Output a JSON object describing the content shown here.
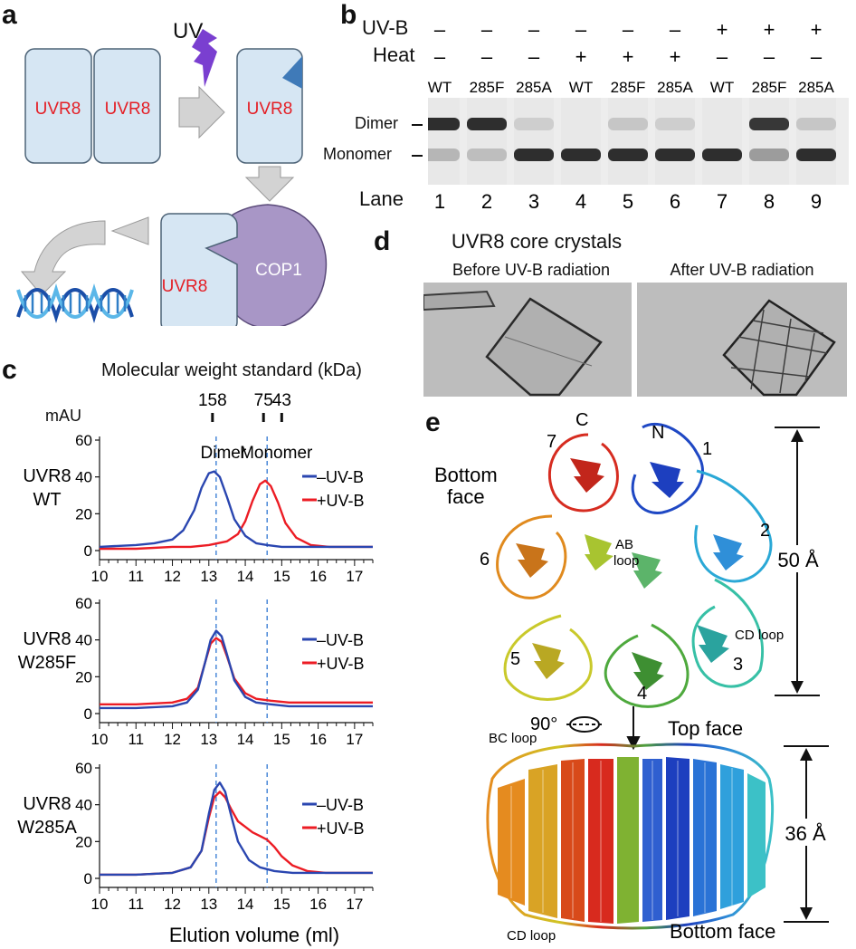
{
  "panel_labels": {
    "a": "a",
    "b": "b",
    "c": "c",
    "d": "d",
    "e": "e"
  },
  "panel_a": {
    "uv": "UV",
    "uvr8": "UVR8",
    "cop1": "COP1",
    "colors": {
      "box_fill": "#d6e6f3",
      "box_stroke": "#4d6377",
      "cop1_fill": "#a896c6",
      "text_red": "#e41e25",
      "arrow_fill": "#d3d3d3",
      "bolt": "#7a3fd0",
      "wedge": "#3f7ab8"
    }
  },
  "panel_b": {
    "uvb_label": "UV-B",
    "heat_label": "Heat",
    "uvb_signs": [
      "–",
      "–",
      "–",
      "–",
      "–",
      "–",
      "+",
      "+",
      "+"
    ],
    "heat_signs": [
      "–",
      "–",
      "–",
      "+",
      "+",
      "+",
      "–",
      "–",
      "–"
    ],
    "genotypes": [
      "WT",
      "285F",
      "285A",
      "WT",
      "285F",
      "285A",
      "WT",
      "285F",
      "285A"
    ],
    "dimer_label": "Dimer",
    "monomer_label": "Monomer",
    "lane_label": "Lane",
    "lanes": [
      "1",
      "2",
      "3",
      "4",
      "5",
      "6",
      "7",
      "8",
      "9"
    ],
    "dimer_band": [
      1.0,
      1.0,
      0.05,
      0.0,
      0.1,
      0.05,
      0.0,
      0.95,
      0.1
    ],
    "monomer_band": [
      0.2,
      0.15,
      1.0,
      1.0,
      1.0,
      1.0,
      1.0,
      0.35,
      1.0
    ]
  },
  "panel_c": {
    "mw_title": "Molecular weight standard (kDa)",
    "mau": "mAU",
    "mw_markers": [
      {
        "label": "158",
        "x": 13.1
      },
      {
        "label": "75",
        "x": 14.5
      },
      {
        "label": "43",
        "x": 15.0
      }
    ],
    "dimer_label": "Dimer",
    "monomer_label": "Monomer",
    "xlabel": "Elution volume (ml)",
    "legend": {
      "minus": "–UV-B",
      "plus": "+UV-B"
    },
    "colors": {
      "minus": "#2a46b0",
      "plus": "#ec1c24",
      "guide": "#4a88d8"
    }
  },
  "chart_data": [
    {
      "type": "line",
      "ylabel_lines": [
        "UVR8",
        "WT"
      ],
      "xlim": [
        10,
        17.5
      ],
      "ylim": [
        0,
        60
      ],
      "xticks": [
        10,
        11,
        12,
        13,
        14,
        15,
        16,
        17
      ],
      "yticks": [
        0,
        20,
        40,
        60
      ],
      "guides": [
        13.2,
        14.6
      ],
      "series": [
        {
          "name": "–UV-B",
          "x": [
            10,
            11,
            11.5,
            12,
            12.3,
            12.6,
            12.8,
            13.0,
            13.15,
            13.3,
            13.5,
            13.7,
            14.0,
            14.3,
            14.6,
            15,
            16,
            17.5
          ],
          "y": [
            2,
            3,
            4,
            6,
            11,
            22,
            34,
            42,
            43,
            40,
            29,
            17,
            8,
            4,
            3,
            2,
            2,
            2
          ]
        },
        {
          "name": "+UV-B",
          "x": [
            10,
            11,
            12,
            12.5,
            13,
            13.5,
            13.8,
            14.0,
            14.2,
            14.4,
            14.55,
            14.7,
            14.9,
            15.1,
            15.4,
            15.8,
            16.3,
            17.5
          ],
          "y": [
            1,
            1,
            2,
            2,
            3,
            5,
            9,
            16,
            27,
            36,
            38,
            35,
            26,
            15,
            7,
            3,
            2,
            2
          ]
        }
      ]
    },
    {
      "type": "line",
      "ylabel_lines": [
        "UVR8",
        "W285F"
      ],
      "xlim": [
        10,
        17.5
      ],
      "ylim": [
        0,
        60
      ],
      "xticks": [
        10,
        11,
        12,
        13,
        14,
        15,
        16,
        17
      ],
      "yticks": [
        0,
        20,
        40,
        60
      ],
      "guides": [
        13.2,
        14.6
      ],
      "series": [
        {
          "name": "–UV-B",
          "x": [
            10,
            11,
            12,
            12.4,
            12.7,
            12.9,
            13.05,
            13.2,
            13.35,
            13.5,
            13.7,
            14.0,
            14.3,
            14.7,
            15.2,
            16,
            17.5
          ],
          "y": [
            3,
            3,
            4,
            6,
            13,
            28,
            40,
            45,
            42,
            32,
            18,
            9,
            6,
            5,
            4,
            4,
            4
          ]
        },
        {
          "name": "+UV-B",
          "x": [
            10,
            11,
            12,
            12.4,
            12.7,
            12.9,
            13.05,
            13.2,
            13.35,
            13.5,
            13.7,
            14.0,
            14.3,
            14.7,
            15.2,
            16,
            17.5
          ],
          "y": [
            5,
            5,
            6,
            8,
            14,
            28,
            38,
            41,
            39,
            31,
            19,
            11,
            8,
            7,
            6,
            6,
            6
          ]
        }
      ]
    },
    {
      "type": "line",
      "ylabel_lines": [
        "UVR8",
        "W285A"
      ],
      "xlim": [
        10,
        17.5
      ],
      "ylim": [
        0,
        60
      ],
      "xticks": [
        10,
        11,
        12,
        13,
        14,
        15,
        16,
        17
      ],
      "yticks": [
        0,
        20,
        40,
        60
      ],
      "guides": [
        13.2,
        14.6
      ],
      "series": [
        {
          "name": "–UV-B",
          "x": [
            10,
            11,
            12,
            12.5,
            12.8,
            13.0,
            13.15,
            13.3,
            13.45,
            13.6,
            13.8,
            14.1,
            14.4,
            14.8,
            15.3,
            16,
            17.5
          ],
          "y": [
            2,
            2,
            3,
            6,
            15,
            35,
            48,
            52,
            47,
            35,
            20,
            10,
            6,
            4,
            3,
            3,
            3
          ]
        },
        {
          "name": "+UV-B",
          "x": [
            10,
            11,
            12,
            12.5,
            12.8,
            13.0,
            13.15,
            13.3,
            13.45,
            13.6,
            13.8,
            14.0,
            14.2,
            14.4,
            14.6,
            14.8,
            15.0,
            15.3,
            15.7,
            16.2,
            17.5
          ],
          "y": [
            2,
            2,
            3,
            6,
            15,
            33,
            44,
            47,
            44,
            38,
            31,
            28,
            25,
            23,
            21,
            17,
            12,
            7,
            4,
            3,
            3
          ]
        }
      ]
    }
  ],
  "panel_d": {
    "title": "UVR8 core crystals",
    "before": "Before UV-B radiation",
    "after": "After UV-B radiation"
  },
  "panel_e": {
    "c": "C",
    "n": "N",
    "blades": [
      "1",
      "2",
      "3",
      "4",
      "5",
      "6",
      "7"
    ],
    "bottom_face_lines": [
      "Bottom",
      "face"
    ],
    "ab_loop_lines": [
      "AB",
      "loop"
    ],
    "cd_loop": "CD loop",
    "bc_loop": "BC loop",
    "rotation": "90°",
    "top_face": "Top face",
    "bottom_face": "Bottom face",
    "dim_50": "50 Å",
    "dim_36": "36 Å"
  }
}
